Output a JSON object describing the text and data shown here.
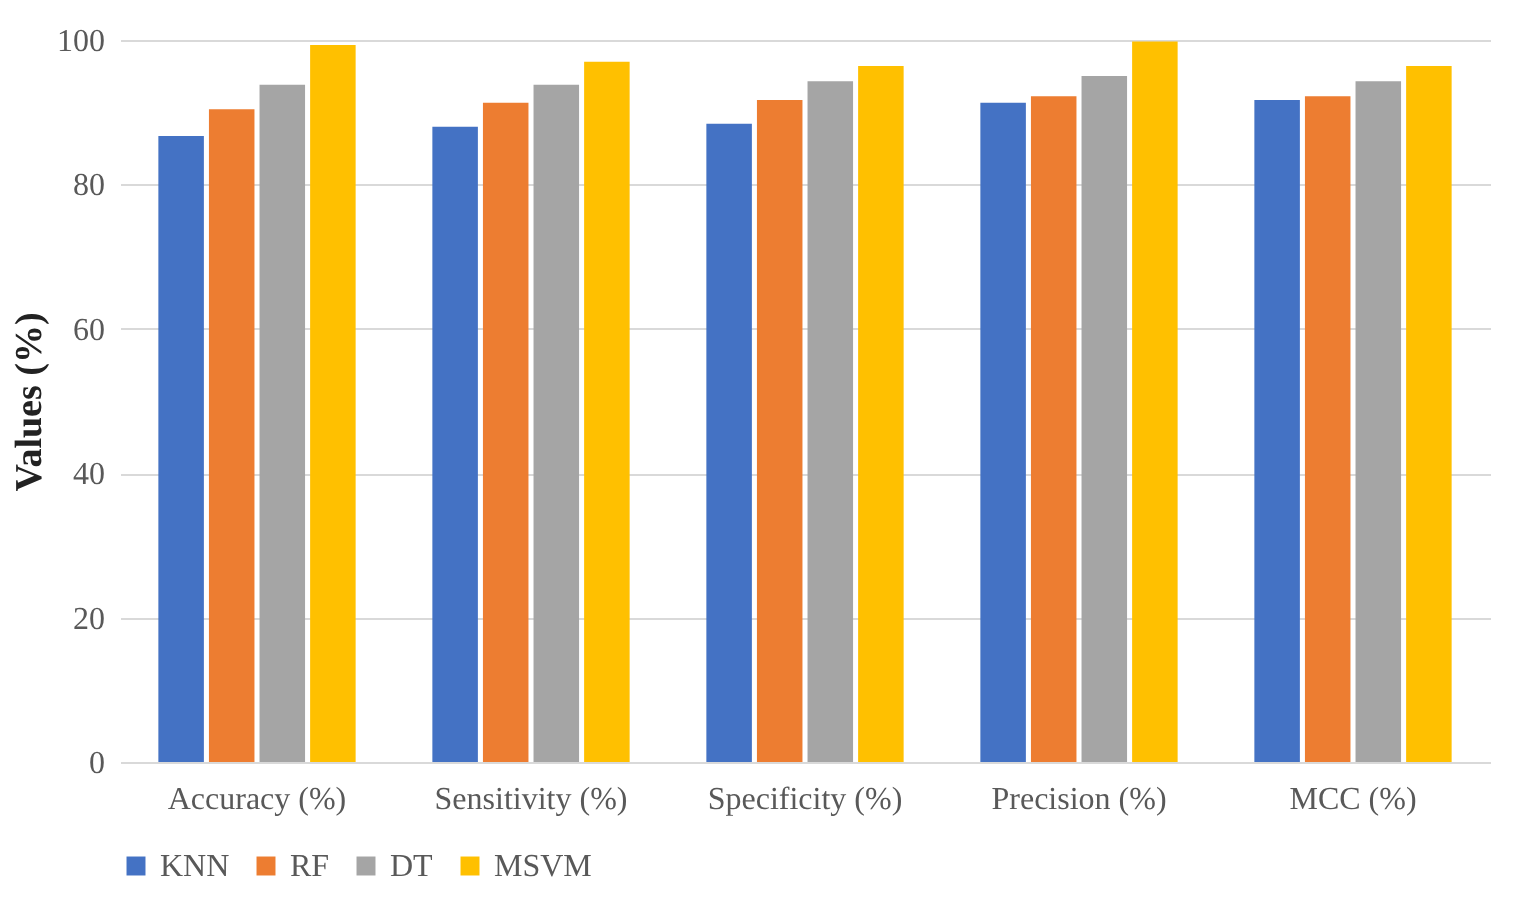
{
  "chart_data": {
    "type": "bar",
    "ylabel": "Values (%)",
    "categories": [
      "Accuracy (%)",
      "Sensitivity (%)",
      "Specificity (%)",
      "Precision (%)",
      "MCC (%)"
    ],
    "series": [
      {
        "name": "KNN",
        "color": "#4472c4",
        "values": [
          86.7,
          88.0,
          88.4,
          91.3,
          91.7
        ]
      },
      {
        "name": "RF",
        "color": "#ed7d31",
        "values": [
          90.4,
          91.3,
          91.7,
          92.2,
          92.2
        ]
      },
      {
        "name": "DT",
        "color": "#a5a5a5",
        "values": [
          93.8,
          93.8,
          94.3,
          95.0,
          94.3
        ]
      },
      {
        "name": "MSVM",
        "color": "#ffc000",
        "values": [
          99.3,
          97.0,
          96.4,
          99.8,
          96.4
        ]
      }
    ],
    "ylim": [
      0,
      100
    ],
    "yticks": [
      0,
      20,
      40,
      60,
      80,
      100
    ],
    "grid": "y",
    "legend": "bottom"
  }
}
